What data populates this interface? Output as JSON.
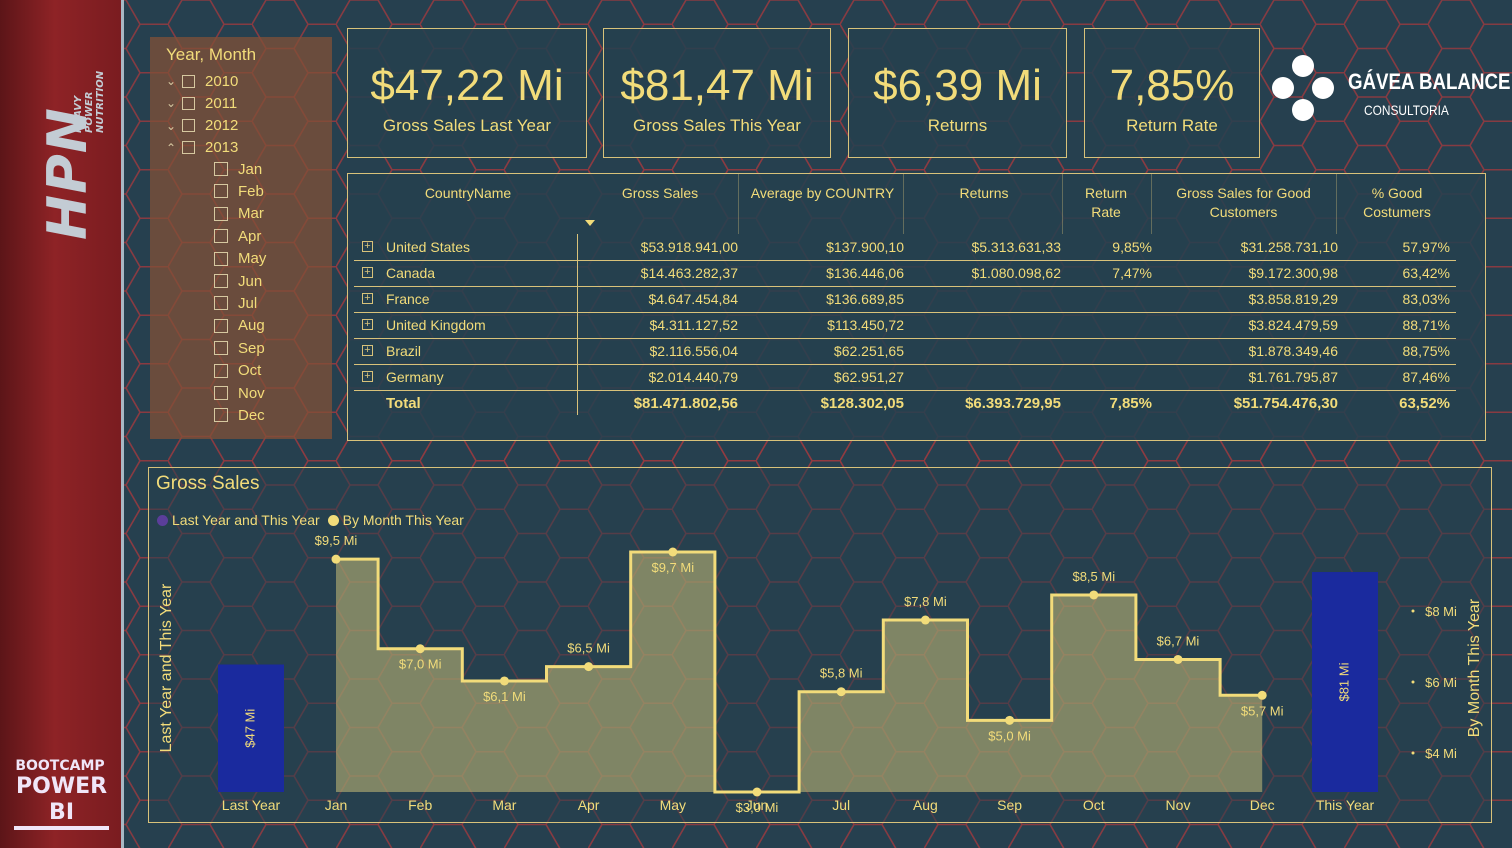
{
  "sidebar": {
    "logo_text": "HPN",
    "logo_sub": [
      "HEAVY",
      "POWER",
      "NUTRITION"
    ],
    "bootcamp_line1": "BOOTCAMP",
    "bootcamp_line2": "POWER BI"
  },
  "slicer": {
    "title": "Year, Month",
    "years": [
      {
        "label": "2010",
        "chevron": "collapsed"
      },
      {
        "label": "2011",
        "chevron": "collapsed"
      },
      {
        "label": "2012",
        "chevron": "collapsed"
      },
      {
        "label": "2013",
        "chevron": "expanded"
      }
    ],
    "months": [
      "Jan",
      "Feb",
      "Mar",
      "Apr",
      "May",
      "Jun",
      "Jul",
      "Aug",
      "Sep",
      "Oct",
      "Nov",
      "Dec"
    ]
  },
  "kpis": [
    {
      "value": "$47,22 Mi",
      "label": "Gross Sales Last Year"
    },
    {
      "value": "$81,47 Mi",
      "label": "Gross Sales This Year"
    },
    {
      "value": "$6,39 Mi",
      "label": "Returns"
    },
    {
      "value": "7,85%",
      "label": "Return Rate"
    }
  ],
  "brand": {
    "name": "GÁVEA BALANCE",
    "sub": "CONSULTORIA"
  },
  "table": {
    "headers": [
      "CountryName",
      "Gross Sales",
      "Average by COUNTRY",
      "Returns",
      "Return Rate",
      "Gross Sales for Good Customers",
      "% Good Costumers"
    ],
    "rows": [
      [
        "United States",
        "$53.918.941,00",
        "$137.900,10",
        "$5.313.631,33",
        "9,85%",
        "$31.258.731,10",
        "57,97%"
      ],
      [
        "Canada",
        "$14.463.282,37",
        "$136.446,06",
        "$1.080.098,62",
        "7,47%",
        "$9.172.300,98",
        "63,42%"
      ],
      [
        "France",
        "$4.647.454,84",
        "$136.689,85",
        "",
        "",
        "$3.858.819,29",
        "83,03%"
      ],
      [
        "United Kingdom",
        "$4.311.127,52",
        "$113.450,72",
        "",
        "",
        "$3.824.479,59",
        "88,71%"
      ],
      [
        "Brazil",
        "$2.116.556,04",
        "$62.251,65",
        "",
        "",
        "$1.878.349,46",
        "88,75%"
      ],
      [
        "Germany",
        "$2.014.440,79",
        "$62.951,27",
        "",
        "",
        "$1.761.795,87",
        "87,46%"
      ]
    ],
    "total": [
      "Total",
      "$81.471.802,56",
      "$128.302,05",
      "$6.393.729,95",
      "7,85%",
      "$51.754.476,30",
      "63,52%"
    ]
  },
  "chart": {
    "title": "Gross Sales",
    "legend": [
      {
        "name": "Last Year and This Year",
        "color": "#5b3e9a"
      },
      {
        "name": "By Month This Year",
        "color": "#f2dc7a"
      }
    ],
    "left_axis_label": "Last Year and This Year",
    "right_axis_label": "By Month This Year",
    "right_ticks": [
      "$8 Mi",
      "$6 Mi",
      "$4 Mi"
    ],
    "bar_color": "#1a2a9e",
    "line_color": "#f2dc7a"
  },
  "chart_data": {
    "type": "bar",
    "title": "Gross Sales",
    "bars": {
      "categories": [
        "Last Year",
        "This Year"
      ],
      "values": [
        47.22,
        81.47
      ],
      "labels": [
        "$47 Mi",
        "$81 Mi"
      ],
      "unit": "Mi"
    },
    "line": {
      "type": "step-area",
      "categories": [
        "Jan",
        "Feb",
        "Mar",
        "Apr",
        "May",
        "Jun",
        "Jul",
        "Aug",
        "Sep",
        "Oct",
        "Nov",
        "Dec"
      ],
      "values": [
        9.5,
        7.0,
        6.1,
        6.5,
        9.7,
        3.0,
        5.8,
        7.8,
        5.0,
        8.5,
        6.7,
        5.7
      ],
      "labels": [
        "$9,5 Mi",
        "$7,0 Mi",
        "$6,1 Mi",
        "$6,5 Mi",
        "$9,7 Mi",
        "$3,0 Mi",
        "$5,8 Mi",
        "$7,8 Mi",
        "$5,0 Mi",
        "$8,5 Mi",
        "$6,7 Mi",
        "$5,7 Mi"
      ],
      "ylim": [
        3.0,
        9.7
      ]
    },
    "right_axis_ticks": [
      8,
      6,
      4
    ]
  }
}
